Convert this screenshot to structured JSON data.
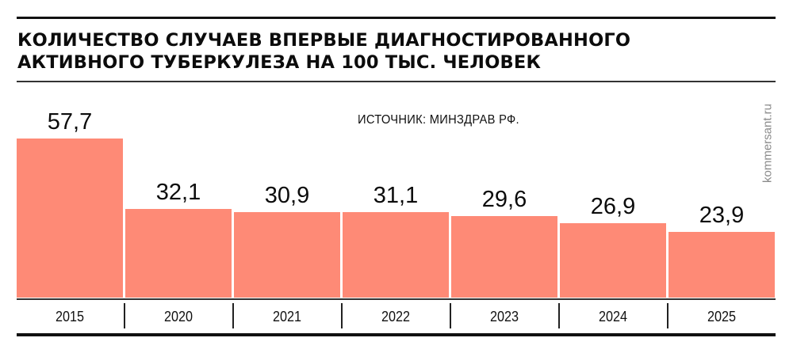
{
  "header": {
    "title_line1": "КОЛИЧЕСТВО СЛУЧАЕВ ВПЕРВЫЕ ДИАГНОСТИРОВАННОГО",
    "title_line2": "АКТИВНОГО ТУБЕРКУЛЕЗА НА 100 ТЫС. ЧЕЛОВЕК"
  },
  "source": "ИСТОЧНИК: МИНЗДРАВ РФ.",
  "brand": "kommersant.ru",
  "colors": {
    "bar": "#fe8a76",
    "text": "#0c0c0c",
    "brand": "#8a8a8a"
  },
  "bars": [
    {
      "year": "2015",
      "label": "57,7"
    },
    {
      "year": "2020",
      "label": "32,1"
    },
    {
      "year": "2021",
      "label": "30,9"
    },
    {
      "year": "2022",
      "label": "31,1"
    },
    {
      "year": "2023",
      "label": "29,6"
    },
    {
      "year": "2024",
      "label": "26,9"
    },
    {
      "year": "2025",
      "label": "23,9"
    }
  ],
  "chart_data": {
    "type": "bar",
    "title": "Количество случаев впервые диагностированного активного туберкулеза на 100 тыс. человек",
    "source": "Минздрав РФ",
    "categories": [
      "2015",
      "2020",
      "2021",
      "2022",
      "2023",
      "2024",
      "2025"
    ],
    "values": [
      57.7,
      32.1,
      30.9,
      31.1,
      29.6,
      26.9,
      23.9
    ],
    "xlabel": "",
    "ylabel": "",
    "ylim": [
      0,
      60
    ],
    "grid": false,
    "legend": null,
    "data_labels": true
  }
}
